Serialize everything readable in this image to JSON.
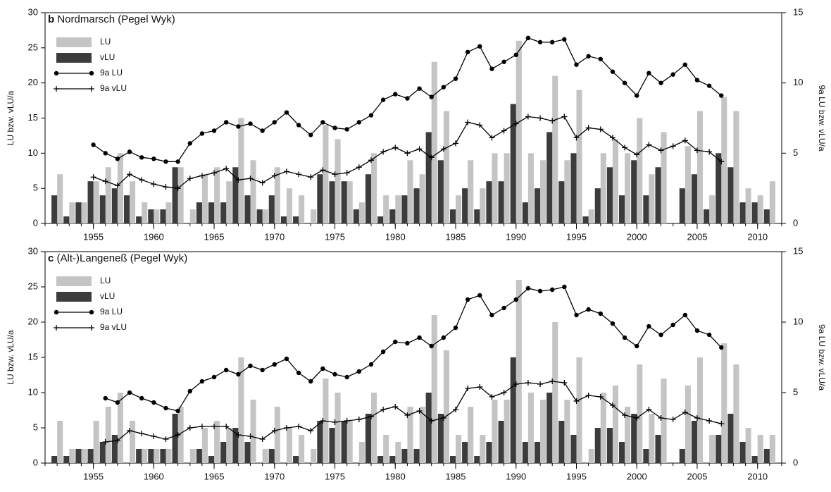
{
  "chart_data": [
    {
      "type": "bar",
      "label": "b",
      "title": "Nordmarsch (Pegel Wyk)",
      "ylabel": "LU bzw. vLU/a",
      "y2label": "9a LU bzw. vLU/a",
      "legend": "upper left",
      "x": [
        1952,
        1953,
        1954,
        1955,
        1956,
        1957,
        1958,
        1959,
        1960,
        1961,
        1962,
        1963,
        1964,
        1965,
        1966,
        1967,
        1968,
        1969,
        1970,
        1971,
        1972,
        1973,
        1974,
        1975,
        1976,
        1977,
        1978,
        1979,
        1980,
        1981,
        1982,
        1983,
        1984,
        1985,
        1986,
        1987,
        1988,
        1989,
        1990,
        1991,
        1992,
        1993,
        1994,
        1995,
        1996,
        1997,
        1998,
        1999,
        2000,
        2001,
        2002,
        2003,
        2004,
        2005,
        2006,
        2007,
        2008,
        2009,
        2010,
        2011
      ],
      "xlim": [
        1951,
        2012
      ],
      "xticks": [
        1955,
        1960,
        1965,
        1970,
        1975,
        1980,
        1985,
        1990,
        1995,
        2000,
        2005,
        2010
      ],
      "ylim": [
        0,
        30
      ],
      "yticks": [
        0,
        5,
        10,
        15,
        20,
        25,
        30
      ],
      "y2lim": [
        0,
        15
      ],
      "y2ticks": [
        0,
        5,
        10,
        15
      ],
      "series": [
        {
          "name": "LU",
          "type": "bar",
          "color": "#c4c4c4",
          "values": [
            7,
            3,
            3,
            6,
            8,
            10,
            6,
            3,
            2,
            3,
            8,
            2,
            7,
            8,
            6,
            15,
            9,
            2,
            8,
            5,
            4,
            2,
            14,
            12,
            6,
            3,
            10,
            4,
            4,
            9,
            7,
            23,
            16,
            4,
            9,
            5,
            10,
            10,
            26,
            10,
            9,
            21,
            9,
            19,
            2,
            10,
            12,
            10,
            15,
            7,
            13,
            0,
            11,
            16,
            4,
            18,
            16,
            5,
            4,
            6
          ]
        },
        {
          "name": "vLU",
          "type": "bar",
          "color": "#3c3c3c",
          "values": [
            4,
            1,
            3,
            6,
            4,
            5,
            4,
            1,
            2,
            2,
            8,
            0,
            3,
            3,
            3,
            8,
            4,
            2,
            4,
            1,
            1,
            0,
            7,
            6,
            6,
            2,
            7,
            1,
            2,
            4,
            5,
            13,
            9,
            2,
            5,
            2,
            6,
            6,
            17,
            3,
            5,
            13,
            6,
            10,
            1,
            5,
            8,
            4,
            9,
            4,
            8,
            0,
            5,
            7,
            2,
            10,
            8,
            3,
            3,
            2
          ]
        },
        {
          "name": "9a LU",
          "type": "line",
          "marker": "circle",
          "axis": "y2",
          "color": "#000000",
          "values": [
            null,
            null,
            null,
            5.6,
            5.0,
            4.6,
            5.1,
            4.7,
            4.6,
            4.4,
            4.4,
            5.7,
            6.4,
            6.6,
            7.2,
            6.9,
            7.1,
            6.6,
            7.2,
            7.9,
            7.0,
            6.3,
            7.2,
            6.8,
            6.7,
            7.2,
            7.7,
            8.8,
            9.2,
            8.9,
            9.6,
            9.0,
            9.7,
            10.3,
            12.2,
            12.6,
            11.0,
            11.5,
            12.0,
            13.2,
            12.9,
            12.9,
            13.1,
            11.3,
            11.9,
            11.7,
            10.8,
            10.0,
            9.1,
            10.7,
            10.0,
            10.6,
            11.3,
            10.2,
            9.8,
            9.1,
            null,
            null,
            null,
            null
          ]
        },
        {
          "name": "9a vLU",
          "type": "line",
          "marker": "plus",
          "axis": "y2",
          "color": "#000000",
          "values": [
            null,
            null,
            null,
            3.3,
            3.0,
            2.7,
            3.5,
            3.1,
            2.8,
            2.6,
            2.5,
            3.2,
            3.4,
            3.6,
            3.9,
            3.1,
            3.2,
            2.9,
            3.4,
            3.7,
            3.5,
            3.3,
            3.8,
            3.5,
            3.6,
            4.0,
            4.5,
            5.1,
            5.4,
            5.0,
            5.3,
            4.7,
            5.3,
            5.7,
            7.2,
            7.0,
            6.1,
            6.6,
            7.1,
            7.6,
            7.5,
            7.3,
            7.6,
            6.1,
            6.8,
            6.7,
            6.1,
            5.4,
            4.9,
            5.6,
            5.2,
            5.5,
            5.9,
            5.2,
            5.1,
            4.4,
            null,
            null,
            null,
            null
          ]
        }
      ]
    },
    {
      "type": "bar",
      "label": "c",
      "title": "(Alt-)Langeneß (Pegel Wyk)",
      "ylabel": "LU bzw. vLU/a",
      "y2label": "9a LU bzw. vLU/a",
      "legend": "upper left",
      "x": [
        1952,
        1953,
        1954,
        1955,
        1956,
        1957,
        1958,
        1959,
        1960,
        1961,
        1962,
        1963,
        1964,
        1965,
        1966,
        1967,
        1968,
        1969,
        1970,
        1971,
        1972,
        1973,
        1974,
        1975,
        1976,
        1977,
        1978,
        1979,
        1980,
        1981,
        1982,
        1983,
        1984,
        1985,
        1986,
        1987,
        1988,
        1989,
        1990,
        1991,
        1992,
        1993,
        1994,
        1995,
        1996,
        1997,
        1998,
        1999,
        2000,
        2001,
        2002,
        2003,
        2004,
        2005,
        2006,
        2007,
        2008,
        2009,
        2010,
        2011
      ],
      "xlim": [
        1951,
        2012
      ],
      "xticks": [
        1955,
        1960,
        1965,
        1970,
        1975,
        1980,
        1985,
        1990,
        1995,
        2000,
        2005,
        2010
      ],
      "ylim": [
        0,
        30
      ],
      "yticks": [
        0,
        5,
        10,
        15,
        20,
        25,
        30
      ],
      "y2lim": [
        0,
        15
      ],
      "y2ticks": [
        0,
        5,
        10,
        15
      ],
      "series": [
        {
          "name": "LU",
          "type": "bar",
          "color": "#c4c4c4",
          "values": [
            6,
            2,
            2,
            6,
            8,
            10,
            6,
            2,
            2,
            2,
            8,
            2,
            5,
            6,
            5,
            15,
            9,
            2,
            8,
            5,
            4,
            2,
            12,
            10,
            6,
            3,
            10,
            4,
            3,
            8,
            8,
            21,
            16,
            4,
            8,
            4,
            9,
            9,
            26,
            10,
            9,
            20,
            9,
            15,
            2,
            10,
            11,
            8,
            14,
            7,
            12,
            0,
            11,
            15,
            4,
            17,
            14,
            5,
            4,
            4
          ]
        },
        {
          "name": "vLU",
          "type": "bar",
          "color": "#3c3c3c",
          "values": [
            1,
            1,
            2,
            2,
            3,
            4,
            0,
            2,
            2,
            2,
            7,
            0,
            2,
            1,
            3,
            5,
            3,
            0,
            2,
            0,
            1,
            0,
            6,
            5,
            6,
            0,
            7,
            1,
            1,
            2,
            2,
            10,
            7,
            1,
            3,
            1,
            3,
            6,
            15,
            3,
            3,
            10,
            6,
            4,
            0,
            5,
            5,
            3,
            7,
            2,
            4,
            0,
            2,
            6,
            0,
            4,
            7,
            3,
            1,
            2
          ]
        },
        {
          "name": "9a LU",
          "type": "line",
          "marker": "circle",
          "axis": "y2",
          "color": "#000000",
          "values": [
            null,
            null,
            null,
            null,
            4.6,
            4.3,
            5.0,
            4.6,
            4.3,
            3.9,
            3.7,
            5.1,
            5.8,
            6.1,
            6.6,
            6.3,
            6.9,
            6.6,
            7.0,
            7.4,
            6.4,
            5.8,
            6.7,
            6.3,
            6.1,
            6.5,
            7.0,
            7.9,
            8.6,
            8.5,
            8.9,
            8.3,
            8.9,
            9.6,
            11.6,
            11.9,
            10.5,
            11.0,
            11.6,
            12.4,
            12.2,
            12.3,
            12.5,
            10.5,
            10.9,
            10.6,
            9.9,
            8.9,
            8.3,
            9.7,
            9.1,
            9.8,
            10.5,
            9.4,
            9.1,
            8.2,
            null,
            null,
            null,
            null
          ]
        },
        {
          "name": "9a vLU",
          "type": "line",
          "marker": "plus",
          "axis": "y2",
          "color": "#000000",
          "values": [
            null,
            null,
            null,
            null,
            1.5,
            1.6,
            2.3,
            2.1,
            1.9,
            1.7,
            2.0,
            2.5,
            2.6,
            2.6,
            2.6,
            2.0,
            1.9,
            1.7,
            2.3,
            2.5,
            2.6,
            2.3,
            3.0,
            2.9,
            3.0,
            3.1,
            3.3,
            3.8,
            4.0,
            3.4,
            3.7,
            3.0,
            3.2,
            3.8,
            5.3,
            5.4,
            4.7,
            5.0,
            5.6,
            5.7,
            5.6,
            5.8,
            5.7,
            4.4,
            4.8,
            4.7,
            4.1,
            3.4,
            3.2,
            3.8,
            3.2,
            3.1,
            3.6,
            3.2,
            3.0,
            2.8,
            null,
            null,
            null,
            null
          ]
        }
      ]
    }
  ]
}
